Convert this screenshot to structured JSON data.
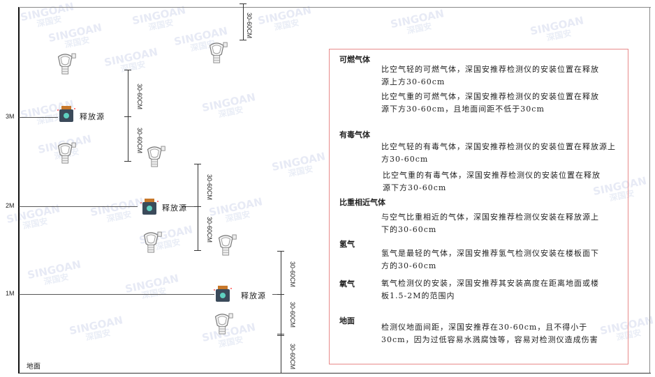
{
  "watermark": {
    "brand": "SINGOAN",
    "cn": "深国安"
  },
  "levels": {
    "m3": "3M",
    "m2": "2M",
    "m1": "1M",
    "floor": "地面"
  },
  "source_label": "释放源",
  "dimension_label": "30-60CM",
  "notes": {
    "combustible": {
      "title": "可燃气体",
      "light": "比空气轻的可燃气体，深国安推荐检测仪的安装位置在释放源上方30-60cm",
      "heavy": "比空气重的可燃气体，深国安推荐检测仪的安装位置在释放源下方30-60cm，且地面间距不低于30cm"
    },
    "toxic": {
      "title": "有毒气体",
      "light": "比空气轻的有毒气体，深国安推荐检测仪的安装位置在释放源上方30-60cm",
      "heavy": "比空气重的有毒气体，深国安推荐检测仪的安装位置在释放源下方30-60cm"
    },
    "similar": {
      "title": "比重相近气体",
      "text": "与空气比重相近的气体，深国安推荐检测仪安装在释放源上下的30-60cm"
    },
    "hydrogen": {
      "title": "氢气",
      "text": "氢气是最轻的气体，深国安推荐氢气检测仪安装在楼板面下方的30-60cm"
    },
    "oxygen": {
      "title": "氧气",
      "text": "氧气检测仪的安装，深国安推荐其安装高度在距离地面或楼板1.5-2M的范围内"
    },
    "ground": {
      "title": "地面",
      "text": "检测仪地面间距，深国安推荐在30-60cm，且不得小于30cm，因为过低容易水溅腐蚀等，容易对检测仪造成伤害"
    }
  },
  "colors": {
    "frame": "#e88a8a",
    "source": "#3b4a5a",
    "source_cap": "#c8782a",
    "detector": "#777777"
  }
}
